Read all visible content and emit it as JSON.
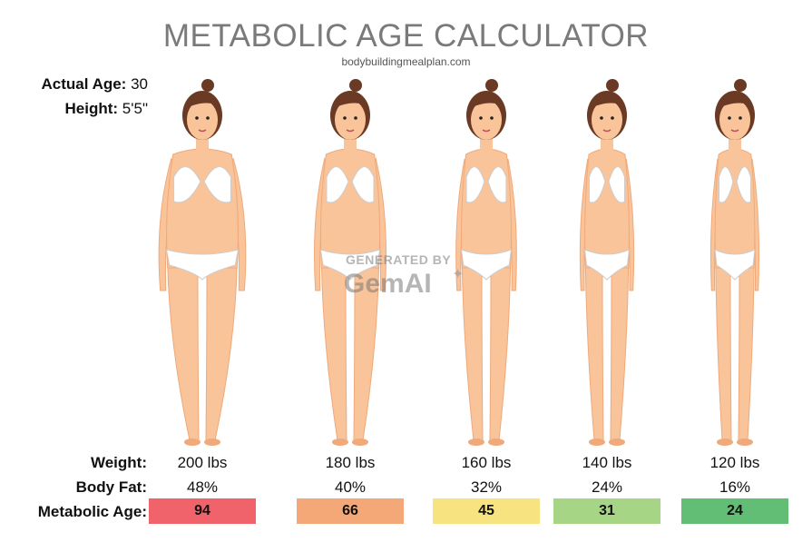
{
  "title": "METABOLIC AGE CALCULATOR",
  "site": "bodybuildingmealplan.com",
  "info": {
    "age_label": "Actual Age:",
    "age_value": "30",
    "height_label": "Height:",
    "height_value": "5'5\""
  },
  "watermark": {
    "line1": "GENERATED BY",
    "line2": "GemAI"
  },
  "labels": {
    "weight": "Weight:",
    "body_fat": "Body Fat:",
    "metabolic_age": "Metabolic Age:"
  },
  "columns": [
    {
      "weight": "200 lbs",
      "body_fat": "48%",
      "metabolic_age": "94",
      "color": "#f0636a"
    },
    {
      "weight": "180 lbs",
      "body_fat": "40%",
      "metabolic_age": "66",
      "color": "#f4a877"
    },
    {
      "weight": "160 lbs",
      "body_fat": "32%",
      "metabolic_age": "45",
      "color": "#f7e37f"
    },
    {
      "weight": "140 lbs",
      "body_fat": "24%",
      "metabolic_age": "31",
      "color": "#a6d585"
    },
    {
      "weight": "120 lbs",
      "body_fat": "16%",
      "metabolic_age": "24",
      "color": "#61be74"
    }
  ],
  "colors": {
    "skin": "#f9c499",
    "skin_shade": "#efa97a",
    "hair": "#6a3a24",
    "underwear": "#ffffff"
  }
}
